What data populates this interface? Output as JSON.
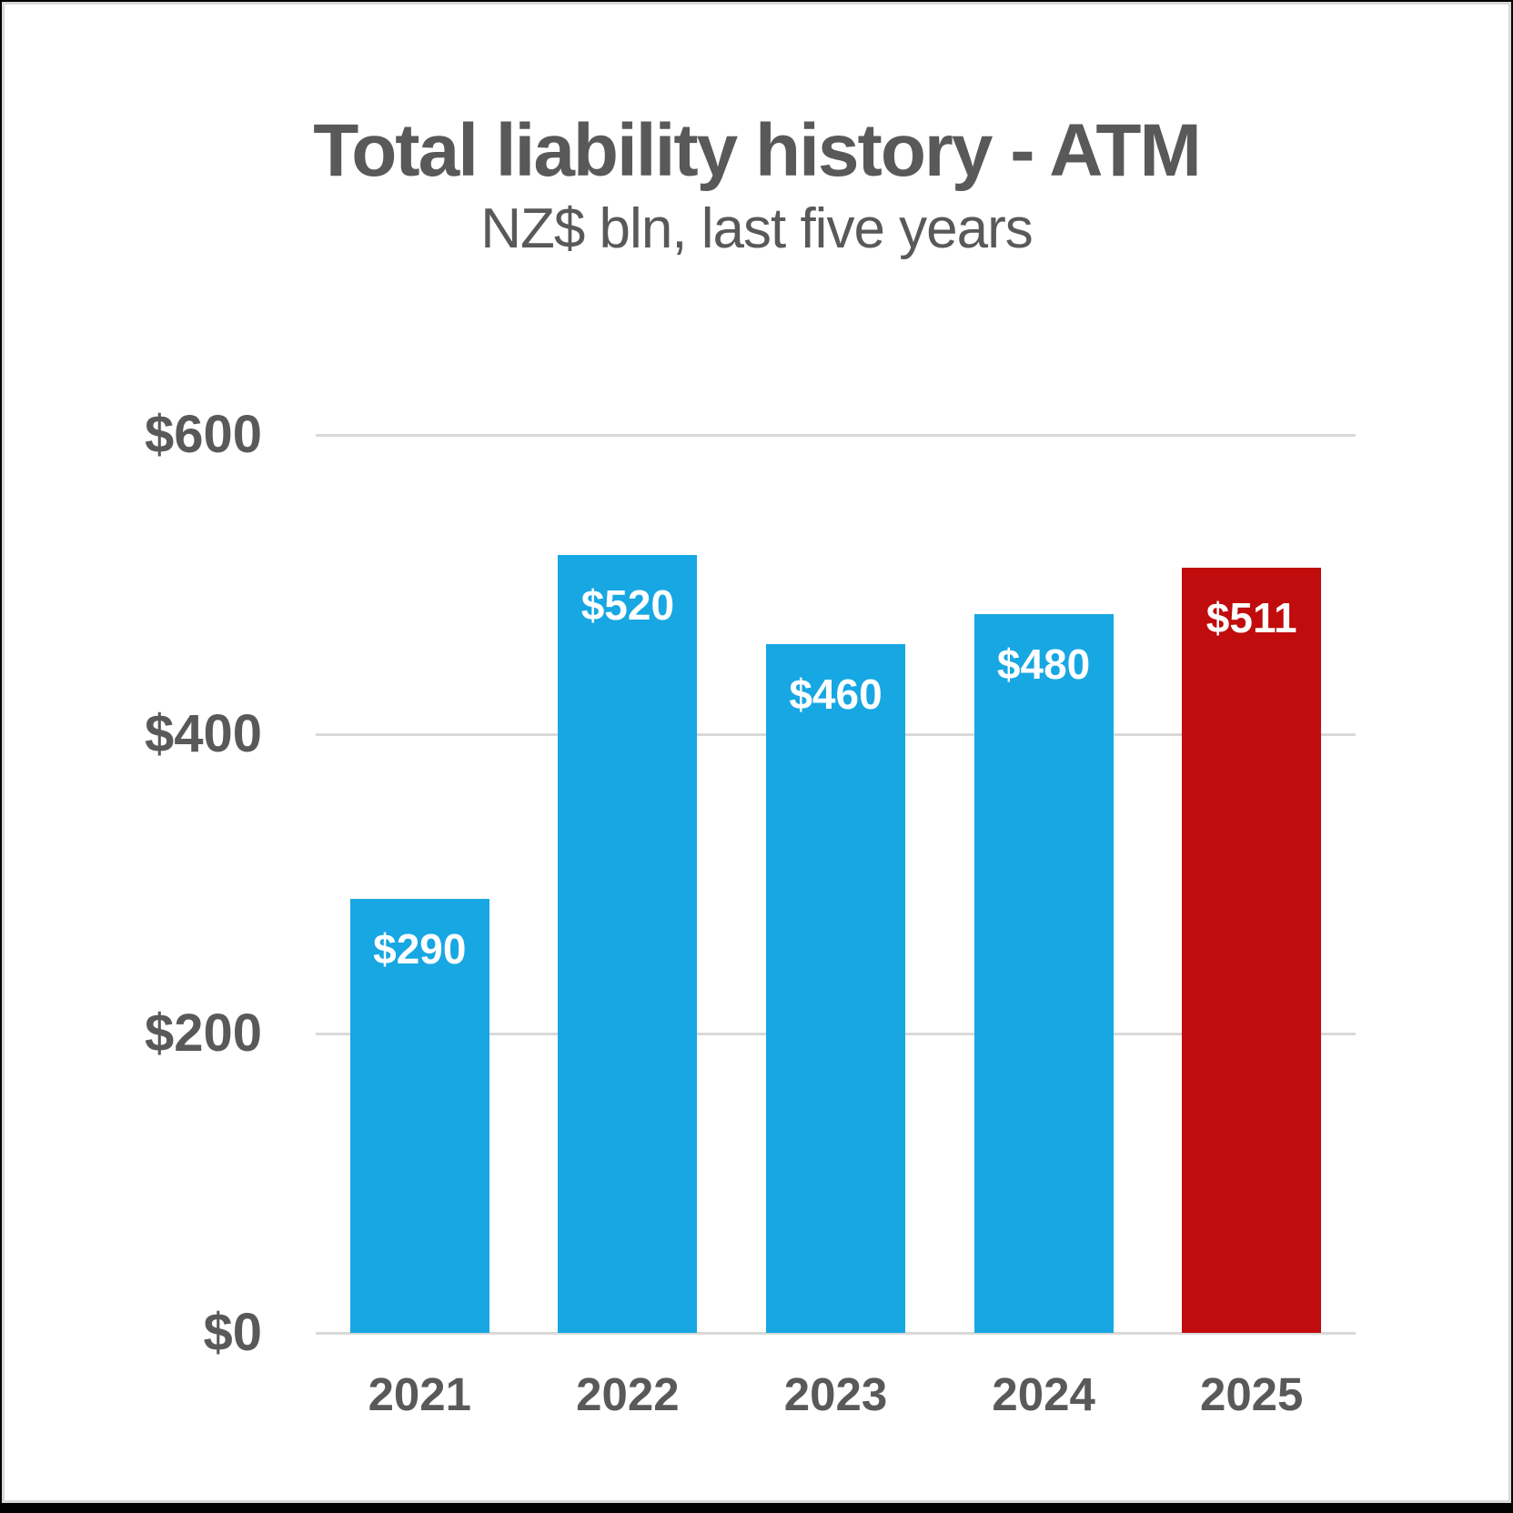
{
  "frame": {
    "page_background": "#000000",
    "card_background": "#ffffff",
    "card_border_color": "#d9d9d9"
  },
  "chart_data": {
    "type": "bar",
    "title": "Total liability history - ATM",
    "subtitle": "NZ$ bln, last five years",
    "categories": [
      "2021",
      "2022",
      "2023",
      "2024",
      "2025"
    ],
    "values": [
      290,
      520,
      460,
      480,
      511
    ],
    "bar_value_labels": [
      "$290",
      "$520",
      "$460",
      "$480",
      "$511"
    ],
    "bar_colors": [
      "#17A7E3",
      "#17A7E3",
      "#17A7E3",
      "#17A7E3",
      "#C00C0C"
    ],
    "highlight_category": "2025",
    "bar_label_color": "#ffffff",
    "xlabel": "",
    "ylabel": "",
    "ylim": [
      0,
      600
    ],
    "yticks": [
      {
        "value": 0,
        "label": "$0"
      },
      {
        "value": 200,
        "label": "$200"
      },
      {
        "value": 400,
        "label": "$400"
      },
      {
        "value": 600,
        "label": "$600"
      }
    ],
    "grid": true,
    "gridline_color": "#d9d9d9",
    "axis_text_color": "#595959",
    "title_color": "#595959",
    "legend_position": "none"
  }
}
